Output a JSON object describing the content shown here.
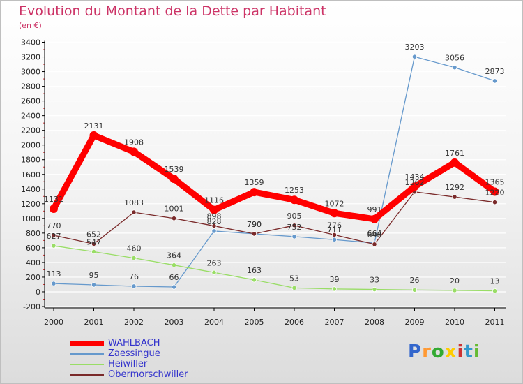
{
  "title": "Evolution du Montant de la Dette par Habitant",
  "subtitle": "(en €)",
  "colors": {
    "title": "#cc3366",
    "legend_text": "#3333cc",
    "axis": "#000000",
    "grid": "#ffffff"
  },
  "logo": {
    "letters": [
      "P",
      "r",
      "o",
      "x",
      "i",
      "t",
      "i"
    ],
    "colors": [
      "#3366cc",
      "#ff9933",
      "#33aa33",
      "#ffcc00",
      "#cc3333",
      "#3399cc",
      "#66bb33"
    ]
  },
  "chart_data": {
    "type": "line",
    "categories": [
      "2000",
      "2001",
      "2002",
      "2003",
      "2004",
      "2005",
      "2006",
      "2007",
      "2008",
      "2009",
      "2010",
      "2011"
    ],
    "ylim": [
      -200,
      3400
    ],
    "yticks": [
      "-200",
      "0",
      "200",
      "400",
      "600",
      "800",
      "1000",
      "1200",
      "1400",
      "1600",
      "1800",
      "2000",
      "2200",
      "2400",
      "2600",
      "2800",
      "3000",
      "3200",
      "3400"
    ],
    "grid": "horizontal",
    "legend": "bottom-left",
    "series": [
      {
        "name": "WAHLBACH",
        "color": "#ff0000",
        "style": "thick",
        "values": [
          1131,
          2131,
          1908,
          1539,
          1116,
          1359,
          1253,
          1072,
          991,
          1434,
          1761,
          1365
        ]
      },
      {
        "name": "Zaessingue",
        "color": "#6699cc",
        "style": "thin",
        "values": [
          113,
          95,
          76,
          66,
          828,
          790,
          752,
          711,
          664,
          3203,
          3056,
          2873
        ]
      },
      {
        "name": "Heiwiller",
        "color": "#99dd66",
        "style": "thin",
        "values": [
          627,
          547,
          460,
          364,
          263,
          163,
          53,
          39,
          33,
          26,
          20,
          13
        ]
      },
      {
        "name": "Obermorschwiller",
        "color": "#7a2a2a",
        "style": "thin",
        "values": [
          770,
          652,
          1083,
          1001,
          898,
          790,
          905,
          776,
          648,
          1362,
          1292,
          1220
        ]
      }
    ]
  }
}
